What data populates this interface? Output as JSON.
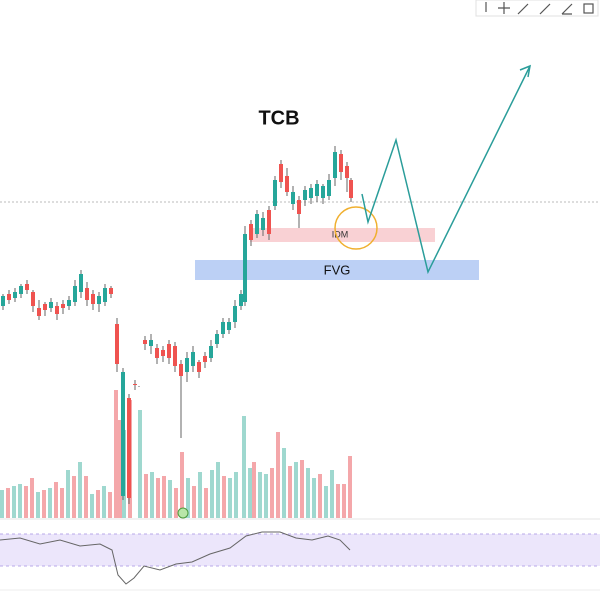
{
  "title": "TCB",
  "annotations": {
    "idm": "IDM",
    "fvg": "FVG"
  }
}
